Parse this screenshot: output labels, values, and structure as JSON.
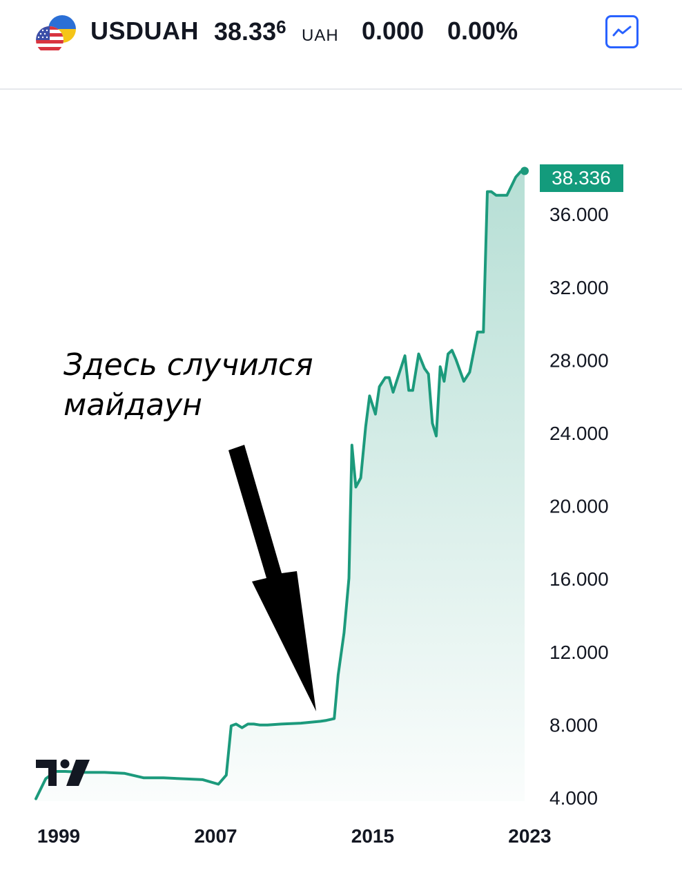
{
  "header": {
    "symbol": "USDUAH",
    "price_main": "38.33",
    "price_last_digit": "6",
    "currency": "UAH",
    "change": "0.000",
    "change_percent": "0.00%",
    "icons": {
      "flags": "usd-uah-flags-icon",
      "chart_button": "chart-line-icon"
    }
  },
  "annotation": {
    "line1": "Здесь случился",
    "line2": "майдаун"
  },
  "colors": {
    "line": "#1c9a7c",
    "price_tag": "#139b7c",
    "button": "#2962ff",
    "text": "#131722"
  },
  "chart_data": {
    "type": "area",
    "title": "",
    "xlabel": "",
    "ylabel": "",
    "x_ticks": [
      "1999",
      "2007",
      "2015",
      "2023"
    ],
    "y_ticks": [
      "4.000",
      "8.000",
      "12.000",
      "16.000",
      "20.000",
      "24.000",
      "28.000",
      "32.000",
      "36.000"
    ],
    "ylim": [
      4.0,
      38.5
    ],
    "last_price_label": "38.336",
    "series": [
      {
        "x": [
          1999.0,
          1999.5,
          2000.0,
          2000.5,
          2001.5,
          2002.5,
          2003.5,
          2004.5,
          2005.1,
          2005.5,
          2006.5,
          2007.5,
          2008.3,
          2008.7,
          2008.95,
          2009.2,
          2009.5,
          2009.8,
          2010.1,
          2010.4,
          2010.8,
          2011.5,
          2012.5,
          2013.5,
          2013.8,
          2014.0,
          2014.2,
          2014.4,
          2014.7,
          2014.95,
          2015.1,
          2015.3,
          2015.55,
          2015.8,
          2016.0,
          2016.3,
          2016.5,
          2016.8,
          2017.0,
          2017.2,
          2017.5,
          2017.8,
          2018.0,
          2018.2,
          2018.5,
          2018.8,
          2019.0,
          2019.2,
          2019.4,
          2019.6,
          2019.8,
          2020.0,
          2020.2,
          2020.4,
          2020.8,
          2021.1,
          2021.5,
          2021.8,
          2022.0,
          2022.2,
          2022.45,
          2022.75,
          2023.0,
          2023.45,
          2023.7,
          2023.9
        ],
        "y": [
          3.9,
          5.0,
          5.4,
          5.4,
          5.35,
          5.35,
          5.3,
          5.05,
          5.05,
          5.05,
          5.0,
          4.95,
          4.7,
          5.2,
          7.9,
          8.0,
          7.8,
          8.0,
          8.0,
          7.95,
          7.95,
          8.0,
          8.05,
          8.15,
          8.2,
          8.25,
          8.3,
          10.7,
          13.0,
          16.0,
          23.3,
          21.0,
          21.5,
          24.3,
          26.0,
          25.0,
          26.5,
          27.0,
          27.0,
          26.2,
          27.2,
          28.2,
          26.3,
          26.3,
          28.3,
          27.5,
          27.2,
          24.5,
          23.8,
          27.6,
          26.8,
          28.3,
          28.5,
          28.0,
          26.8,
          27.3,
          29.5,
          29.5,
          37.2,
          37.2,
          37.0,
          37.0,
          37.0,
          38.0,
          38.3,
          38.336
        ]
      }
    ],
    "grid": false,
    "legend": "none"
  }
}
